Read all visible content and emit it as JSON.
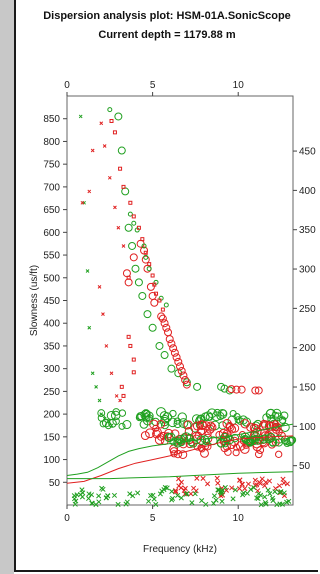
{
  "title_line1": "Dispersion analysis plot: HSM-01A.SonicScope",
  "title_line2": "Current depth  = 1179.88 m",
  "chart_data": {
    "type": "scatter",
    "xlabel": "Frequency (kHz)",
    "ylabel": "Slowness (us/ft)",
    "xlim": [
      0,
      13.2
    ],
    "ylim": [
      0,
      900
    ],
    "ylim_right": [
      0,
      520
    ],
    "x_ticks": [
      0,
      5,
      10
    ],
    "x_tick_labels": [
      "0",
      "5",
      "10"
    ],
    "y_ticks": [
      50,
      100,
      150,
      200,
      250,
      300,
      350,
      400,
      450,
      500,
      550,
      600,
      650,
      700,
      750,
      800,
      850
    ],
    "y_tick_labels": [
      "50",
      "100",
      "150",
      "200",
      "250",
      "300",
      "350",
      "400",
      "450",
      "500",
      "550",
      "600",
      "650",
      "700",
      "750",
      "800",
      "850"
    ],
    "y_right_ticks": [
      50,
      100,
      150,
      200,
      250,
      300,
      350,
      400,
      450
    ],
    "y_right_tick_labels": [
      "50",
      "100",
      "150",
      "200",
      "250",
      "300",
      "350",
      "400",
      "450"
    ],
    "colors": {
      "red": "#e02020",
      "green": "#20a020"
    },
    "series": [
      {
        "color": "green",
        "marker": "circle",
        "points": [
          [
            3.0,
            855
          ],
          [
            3.2,
            780
          ],
          [
            3.4,
            690
          ],
          [
            3.6,
            610
          ],
          [
            3.8,
            570
          ],
          [
            4.0,
            520
          ],
          [
            4.2,
            490
          ],
          [
            4.4,
            460
          ],
          [
            4.7,
            420
          ],
          [
            5.0,
            390
          ],
          [
            5.4,
            350
          ],
          [
            5.7,
            330
          ],
          [
            6.1,
            300
          ],
          [
            6.5,
            290
          ],
          [
            7.0,
            270
          ],
          [
            7.6,
            260
          ],
          [
            9.0,
            260
          ],
          [
            9.2,
            256
          ],
          [
            9.5,
            252
          ]
        ]
      },
      {
        "color": "red",
        "marker": "circle",
        "points": [
          [
            3.5,
            510
          ],
          [
            3.6,
            490
          ],
          [
            3.9,
            545
          ],
          [
            4.3,
            575
          ],
          [
            4.5,
            560
          ],
          [
            4.6,
            540
          ],
          [
            4.7,
            520
          ],
          [
            4.9,
            480
          ],
          [
            5.0,
            460
          ],
          [
            5.1,
            445
          ],
          [
            5.5,
            415
          ],
          [
            5.6,
            410
          ],
          [
            5.7,
            400
          ],
          [
            5.8,
            390
          ],
          [
            5.9,
            380
          ],
          [
            6.0,
            365
          ],
          [
            6.1,
            355
          ],
          [
            6.2,
            345
          ],
          [
            6.3,
            335
          ],
          [
            6.4,
            325
          ],
          [
            6.5,
            315
          ],
          [
            6.6,
            305
          ],
          [
            6.7,
            295
          ],
          [
            6.8,
            285
          ],
          [
            6.9,
            275
          ],
          [
            7.0,
            265
          ],
          [
            9.6,
            255
          ],
          [
            9.9,
            254
          ],
          [
            10.2,
            254
          ],
          [
            11.0,
            252
          ],
          [
            11.2,
            252
          ]
        ]
      },
      {
        "color": "green",
        "marker": "cross-small",
        "points": [
          [
            0.8,
            855
          ],
          [
            1.0,
            665
          ],
          [
            1.2,
            515
          ],
          [
            1.3,
            390
          ],
          [
            1.5,
            290
          ],
          [
            1.7,
            260
          ],
          [
            1.9,
            230
          ],
          [
            2.0,
            200
          ],
          [
            2.2,
            190
          ],
          [
            2.4,
            185
          ],
          [
            2.6,
            175
          ]
        ]
      },
      {
        "color": "red",
        "marker": "cross-small",
        "points": [
          [
            0.9,
            665
          ],
          [
            1.3,
            690
          ],
          [
            1.5,
            780
          ],
          [
            2.0,
            840
          ],
          [
            2.2,
            790
          ],
          [
            2.5,
            720
          ],
          [
            2.8,
            655
          ],
          [
            3.0,
            610
          ],
          [
            3.3,
            570
          ],
          [
            1.9,
            480
          ],
          [
            2.1,
            420
          ],
          [
            2.3,
            350
          ],
          [
            2.6,
            290
          ],
          [
            2.9,
            240
          ],
          [
            3.1,
            230
          ]
        ]
      },
      {
        "color": "green",
        "marker": "circle-small",
        "points": [
          [
            2.5,
            870
          ],
          [
            3.7,
            640
          ],
          [
            3.9,
            620
          ],
          [
            4.1,
            605
          ],
          [
            4.5,
            570
          ],
          [
            4.6,
            545
          ],
          [
            4.8,
            520
          ],
          [
            5.2,
            490
          ],
          [
            5.5,
            455
          ],
          [
            5.8,
            440
          ]
        ]
      },
      {
        "color": "red",
        "marker": "square-small",
        "points": [
          [
            2.6,
            845
          ],
          [
            2.8,
            820
          ],
          [
            3.1,
            740
          ],
          [
            3.3,
            700
          ],
          [
            3.7,
            665
          ],
          [
            3.9,
            635
          ],
          [
            4.2,
            610
          ],
          [
            4.4,
            585
          ],
          [
            4.6,
            555
          ],
          [
            4.8,
            530
          ],
          [
            5.0,
            505
          ],
          [
            5.1,
            485
          ],
          [
            5.2,
            465
          ],
          [
            5.4,
            450
          ],
          [
            5.6,
            430
          ],
          [
            3.6,
            500
          ],
          [
            3.6,
            370
          ],
          [
            3.7,
            350
          ],
          [
            3.9,
            320
          ],
          [
            3.9,
            292
          ],
          [
            3.2,
            260
          ],
          [
            3.3,
            240
          ]
        ]
      }
    ],
    "bands": [
      {
        "color": "green",
        "x0": 2.0,
        "x1": 13.2,
        "y0": 170,
        "y1": 205
      },
      {
        "color": "red",
        "x0": 4.2,
        "x1": 12.6,
        "y0": 150,
        "y1": 180
      },
      {
        "color": "red",
        "x0": 5.4,
        "x1": 12.4,
        "y0": 110,
        "y1": 150
      },
      {
        "color": "green",
        "x0": 5.8,
        "x1": 13.2,
        "y0": 135,
        "y1": 150
      },
      {
        "color": "red",
        "x0": 6.3,
        "x1": 13.2,
        "y0": 20,
        "y1": 60
      },
      {
        "color": "green",
        "x0": 0.4,
        "x1": 13.2,
        "y0": 0,
        "y1": 40
      }
    ],
    "lines": [
      {
        "color": "green",
        "points": [
          [
            0,
            65
          ],
          [
            0.6,
            68
          ],
          [
            1.2,
            72
          ],
          [
            1.8,
            82
          ],
          [
            2.4,
            95
          ],
          [
            3.0,
            108
          ],
          [
            3.6,
            118
          ],
          [
            4.2,
            124
          ],
          [
            5.0,
            130
          ],
          [
            6.0,
            135
          ],
          [
            7.0,
            140
          ],
          [
            8.0,
            145
          ],
          [
            9.0,
            150
          ],
          [
            10.0,
            155
          ],
          [
            11.0,
            162
          ],
          [
            12.0,
            170
          ],
          [
            13.2,
            178
          ]
        ]
      },
      {
        "color": "red",
        "points": [
          [
            0,
            48
          ],
          [
            1.0,
            52
          ],
          [
            2.0,
            65
          ],
          [
            3.0,
            80
          ],
          [
            4.0,
            92
          ],
          [
            5.0,
            100
          ],
          [
            6.0,
            108
          ],
          [
            7.0,
            118
          ],
          [
            8.0,
            128
          ],
          [
            9.0,
            138
          ],
          [
            10.0,
            145
          ],
          [
            11.0,
            148
          ],
          [
            12.0,
            150
          ],
          [
            13.2,
            152
          ]
        ]
      },
      {
        "color": "green",
        "points": [
          [
            0,
            58
          ],
          [
            1.0,
            58
          ],
          [
            2.5,
            58
          ],
          [
            4.0,
            60
          ],
          [
            6.0,
            62
          ],
          [
            8.0,
            66
          ],
          [
            10.0,
            70
          ],
          [
            12.0,
            72
          ],
          [
            13.2,
            73
          ]
        ]
      }
    ]
  }
}
